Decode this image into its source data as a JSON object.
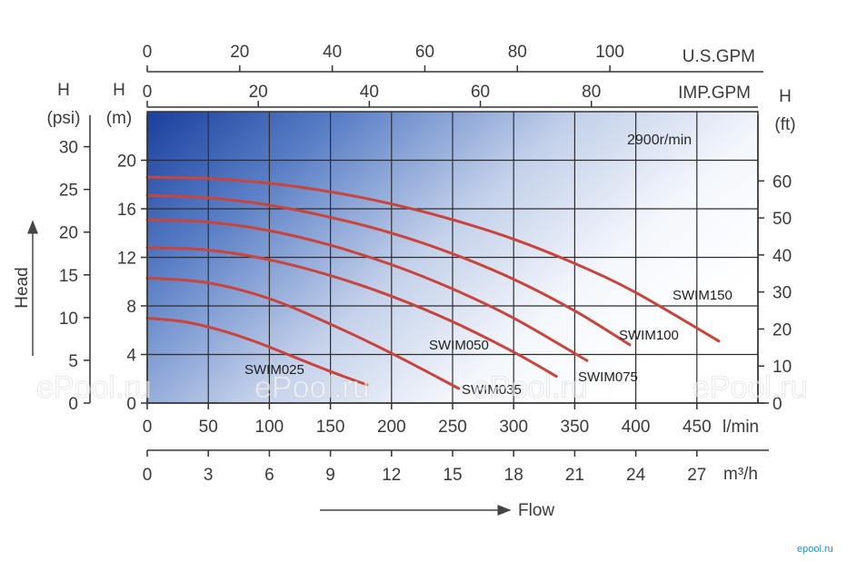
{
  "chart_data": {
    "type": "line",
    "title": "",
    "x_axes": {
      "l_min": {
        "unit": "l/min",
        "ticks": [
          0,
          50,
          100,
          150,
          200,
          250,
          300,
          350,
          400,
          450
        ],
        "range": [
          0,
          500
        ]
      },
      "m3_h": {
        "unit": "m³/h",
        "ticks": [
          0,
          3,
          6,
          9,
          12,
          15,
          18,
          21,
          24,
          27
        ],
        "range": [
          0,
          30
        ]
      },
      "us_gpm": {
        "unit": "U.S.GPM",
        "ticks": [
          0,
          20,
          40,
          60,
          80,
          100
        ],
        "range": [
          0,
          132
        ]
      },
      "imp_gpm": {
        "unit": "IMP.GPM",
        "ticks": [
          0,
          20,
          40,
          60,
          80
        ],
        "range": [
          0,
          110
        ]
      }
    },
    "y_axes": {
      "m": {
        "unit_top": "H",
        "unit_bottom": "(m)",
        "ticks": [
          0,
          4,
          8,
          12,
          16,
          20
        ],
        "range": [
          0,
          24
        ]
      },
      "psi": {
        "unit_top": "H",
        "unit_bottom": "(psi)",
        "ticks": [
          0,
          5,
          10,
          15,
          20,
          25,
          30
        ],
        "range": [
          0,
          34.1
        ]
      },
      "ft": {
        "unit_top": "H",
        "unit_bottom": "(ft)",
        "ticks": [
          0,
          10,
          20,
          30,
          40,
          50,
          60
        ],
        "range": [
          0,
          78.7
        ]
      }
    },
    "ylabel": "Head",
    "xlabel": "Flow",
    "speed_label": "2900r/min",
    "grid": true,
    "series": [
      {
        "name": "SWIM025",
        "x": [
          0,
          30,
          60,
          90,
          120,
          150,
          180
        ],
        "y": [
          7.0,
          6.7,
          6.0,
          5.0,
          3.8,
          2.6,
          1.5
        ]
      },
      {
        "name": "SWIM035",
        "x": [
          0,
          50,
          100,
          150,
          200,
          255
        ],
        "y": [
          10.3,
          9.9,
          8.6,
          6.5,
          4.1,
          1.2
        ]
      },
      {
        "name": "SWIM050",
        "x": [
          0,
          50,
          100,
          150,
          200,
          250,
          300,
          335
        ],
        "y": [
          12.8,
          12.6,
          11.8,
          10.5,
          8.8,
          6.7,
          4.2,
          2.2
        ]
      },
      {
        "name": "SWIM075",
        "x": [
          0,
          50,
          100,
          150,
          200,
          250,
          300,
          360
        ],
        "y": [
          15.1,
          14.9,
          14.2,
          13.0,
          11.4,
          9.4,
          7.0,
          3.5
        ]
      },
      {
        "name": "SWIM100",
        "x": [
          0,
          50,
          100,
          150,
          200,
          250,
          300,
          350,
          395
        ],
        "y": [
          17.1,
          16.9,
          16.3,
          15.3,
          14.0,
          12.3,
          10.2,
          7.6,
          4.8
        ]
      },
      {
        "name": "SWIM150",
        "x": [
          0,
          50,
          100,
          150,
          200,
          250,
          300,
          350,
          400,
          468
        ],
        "y": [
          18.6,
          18.5,
          18.1,
          17.4,
          16.4,
          15.1,
          13.5,
          11.5,
          9.1,
          5.1
        ]
      }
    ],
    "series_color": "#c9443c"
  },
  "watermarks": [
    "ePool.ru",
    "ePool.ru",
    "ePool.ru",
    "ePool.ru"
  ],
  "logo_text": "epool.ru"
}
